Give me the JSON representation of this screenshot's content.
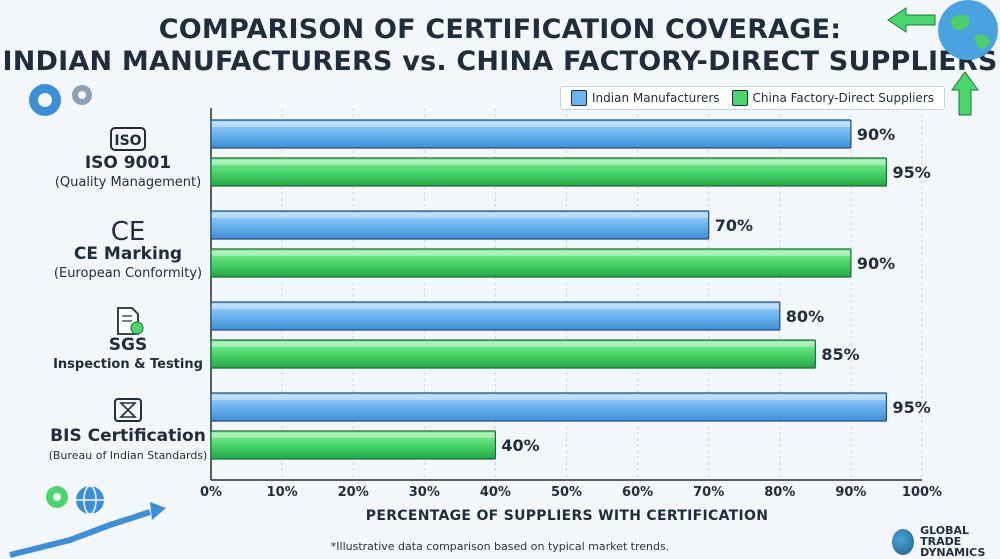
{
  "title_line1": "COMPARISON OF CERTIFICATION COVERAGE:",
  "title_line2": "INDIAN MANUFACTURERS vs. CHINA FACTORY-DIRECT SUPPLIERS",
  "legend": {
    "series1": "Indian Manufacturers",
    "series2": "China Factory-Direct Suppliers"
  },
  "footnote": "*Illustrative data comparison based on typical market trends.",
  "brand": {
    "line1": "GLOBAL TRADE",
    "line2": "DYNAMICS"
  },
  "colors": {
    "indian": "#6cb4ef",
    "china": "#49d66a",
    "text": "#1f2d3d"
  },
  "chart_data": {
    "type": "bar",
    "orientation": "horizontal",
    "categories": [
      {
        "name": "ISO 9001",
        "sub": "(Quality Management)",
        "icon": "iso-icon",
        "icon_text": "ISO"
      },
      {
        "name": "CE Marking",
        "sub": "(European Conformity)",
        "icon": "ce-icon",
        "icon_text": "CE"
      },
      {
        "name": "SGS",
        "sub": "Inspection & Testing",
        "icon": "document-check-icon",
        "icon_text": ""
      },
      {
        "name": "BIS Certification",
        "sub": "(Bureau of Indian Standards)",
        "icon": "bis-icon",
        "icon_text": ""
      }
    ],
    "series": [
      {
        "name": "Indian Manufacturers",
        "values": [
          90,
          70,
          80,
          95
        ]
      },
      {
        "name": "China Factory-Direct Suppliers",
        "values": [
          95,
          90,
          85,
          40
        ]
      }
    ],
    "value_suffix": "%",
    "xlabel": "PERCENTAGE OF SUPPLIERS WITH CERTIFICATION",
    "xlim": [
      0,
      100
    ],
    "xticks": [
      "0%",
      "10%",
      "20%",
      "30%",
      "40%",
      "50%",
      "60%",
      "70%",
      "80%",
      "90%",
      "100%"
    ],
    "legend_position": "top-right",
    "grid": true
  }
}
